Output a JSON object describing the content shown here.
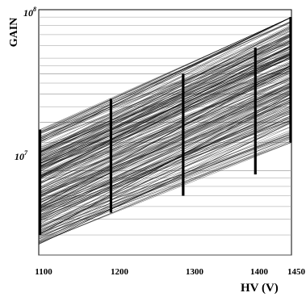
{
  "chart_data": {
    "type": "line",
    "title": "",
    "xlabel": "HV (V)",
    "ylabel": "GAIN",
    "x_scale": "linear",
    "y_scale": "log",
    "xlim": [
      1100,
      1450
    ],
    "ylim": [
      3000000,
      100000000
    ],
    "x_ticks": [
      1100,
      1200,
      1300,
      1400,
      1450
    ],
    "x_tick_labels": [
      "1100",
      "1200",
      "1300",
      "1400",
      "1450"
    ],
    "y_ticks": [
      10000000,
      100000000
    ],
    "y_tick_base": "10",
    "y_tick_exponents": [
      "7",
      "8"
    ],
    "grid": true,
    "measurement_voltages": [
      1100,
      1200,
      1300,
      1400,
      1450
    ],
    "description_of_series": "many individual PMT gain curves, approximately linear on log scale",
    "representative_series": [
      {
        "x": [
          1100,
          1450
        ],
        "y": [
          4000000,
          30000000
        ]
      },
      {
        "x": [
          1100,
          1450
        ],
        "y": [
          6000000,
          45000000
        ]
      },
      {
        "x": [
          1100,
          1450
        ],
        "y": [
          9000000,
          60000000
        ]
      },
      {
        "x": [
          1100,
          1450
        ],
        "y": [
          15000000,
          90000000
        ]
      },
      {
        "x": [
          1100,
          1450
        ],
        "y": [
          3500000,
          20000000
        ]
      }
    ],
    "gain_at_1100_range": [
      3500000,
      18000000
    ],
    "gain_at_1450_range": [
      15000000,
      90000000
    ]
  }
}
